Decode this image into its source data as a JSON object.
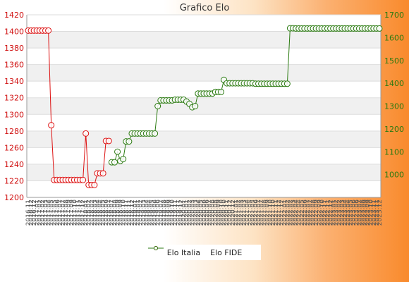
{
  "chart_data": {
    "type": "line",
    "title": "Grafico Elo",
    "y_left": {
      "lim": [
        1200,
        1420
      ],
      "ticks": [
        1200,
        1220,
        1240,
        1260,
        1280,
        1300,
        1320,
        1340,
        1360,
        1380,
        1400,
        1420
      ],
      "color": "#cc0000"
    },
    "y_right": {
      "lim": [
        900,
        1700
      ],
      "ticks": [
        1000,
        1100,
        1200,
        1300,
        1400,
        1500,
        1600,
        1700
      ],
      "color": "#2a7a10"
    },
    "x_start": "2016.11",
    "x_end": "2023.12",
    "x_tick_samples": [
      "2016.11",
      "2019.05",
      "2022.01",
      "2023.12"
    ],
    "grid": "horizontal",
    "legend_position": "bottom",
    "series": [
      {
        "name": "Elo Italia",
        "axis": "left",
        "color": "#dd1111",
        "marker": "circle-open",
        "points": [
          [
            0,
            1401
          ],
          [
            1,
            1401
          ],
          [
            2,
            1401
          ],
          [
            3,
            1401
          ],
          [
            4,
            1401
          ],
          [
            5,
            1401
          ],
          [
            6,
            1401
          ],
          [
            7,
            1401
          ],
          [
            8,
            1287
          ],
          [
            9,
            1221
          ],
          [
            10,
            1221
          ],
          [
            11,
            1221
          ],
          [
            12,
            1221
          ],
          [
            13,
            1221
          ],
          [
            14,
            1221
          ],
          [
            15,
            1221
          ],
          [
            16,
            1221
          ],
          [
            17,
            1221
          ],
          [
            18,
            1221
          ],
          [
            19,
            1221
          ],
          [
            20,
            1277
          ],
          [
            21,
            1215
          ],
          [
            22,
            1215
          ],
          [
            23,
            1215
          ],
          [
            24,
            1229
          ],
          [
            25,
            1229
          ],
          [
            26,
            1229
          ],
          [
            27,
            1268
          ],
          [
            28,
            1268
          ]
        ]
      },
      {
        "name": "Elo FIDE",
        "axis": "right",
        "color": "#2a7a10",
        "marker": "circle-open",
        "points": [
          [
            29,
            1054
          ],
          [
            30,
            1054
          ],
          [
            31,
            1100
          ],
          [
            32,
            1060
          ],
          [
            33,
            1068
          ],
          [
            34,
            1145
          ],
          [
            35,
            1145
          ],
          [
            36,
            1180
          ],
          [
            37,
            1180
          ],
          [
            38,
            1180
          ],
          [
            39,
            1180
          ],
          [
            40,
            1180
          ],
          [
            41,
            1180
          ],
          [
            42,
            1180
          ],
          [
            43,
            1180
          ],
          [
            44,
            1180
          ],
          [
            45,
            1300
          ],
          [
            46,
            1325
          ],
          [
            47,
            1325
          ],
          [
            48,
            1325
          ],
          [
            49,
            1325
          ],
          [
            50,
            1325
          ],
          [
            51,
            1328
          ],
          [
            52,
            1328
          ],
          [
            53,
            1328
          ],
          [
            54,
            1328
          ],
          [
            55,
            1320
          ],
          [
            56,
            1310
          ],
          [
            57,
            1295
          ],
          [
            58,
            1300
          ],
          [
            59,
            1355
          ],
          [
            60,
            1355
          ],
          [
            61,
            1355
          ],
          [
            62,
            1355
          ],
          [
            63,
            1355
          ],
          [
            64,
            1355
          ],
          [
            65,
            1362
          ],
          [
            66,
            1362
          ],
          [
            67,
            1362
          ],
          [
            68,
            1415
          ],
          [
            69,
            1400
          ],
          [
            70,
            1400
          ],
          [
            71,
            1400
          ],
          [
            72,
            1400
          ],
          [
            73,
            1400
          ],
          [
            74,
            1400
          ],
          [
            75,
            1400
          ],
          [
            76,
            1400
          ],
          [
            77,
            1400
          ],
          [
            78,
            1400
          ],
          [
            79,
            1398
          ],
          [
            80,
            1398
          ],
          [
            81,
            1398
          ],
          [
            82,
            1398
          ],
          [
            83,
            1398
          ],
          [
            84,
            1398
          ],
          [
            85,
            1398
          ],
          [
            86,
            1398
          ],
          [
            87,
            1398
          ],
          [
            88,
            1398
          ],
          [
            89,
            1398
          ],
          [
            90,
            1398
          ],
          [
            91,
            1641
          ],
          [
            92,
            1641
          ],
          [
            93,
            1640
          ],
          [
            94,
            1640
          ],
          [
            95,
            1640
          ],
          [
            96,
            1640
          ],
          [
            97,
            1640
          ],
          [
            98,
            1640
          ],
          [
            99,
            1640
          ],
          [
            100,
            1640
          ],
          [
            101,
            1640
          ],
          [
            102,
            1640
          ],
          [
            103,
            1640
          ],
          [
            104,
            1640
          ],
          [
            105,
            1640
          ],
          [
            106,
            1640
          ],
          [
            107,
            1640
          ],
          [
            108,
            1640
          ],
          [
            109,
            1640
          ],
          [
            110,
            1640
          ],
          [
            111,
            1640
          ],
          [
            112,
            1640
          ],
          [
            113,
            1640
          ],
          [
            114,
            1640
          ],
          [
            115,
            1640
          ],
          [
            116,
            1640
          ],
          [
            117,
            1640
          ],
          [
            118,
            1640
          ],
          [
            119,
            1640
          ],
          [
            120,
            1640
          ],
          [
            121,
            1640
          ],
          [
            122,
            1640
          ]
        ]
      }
    ]
  }
}
